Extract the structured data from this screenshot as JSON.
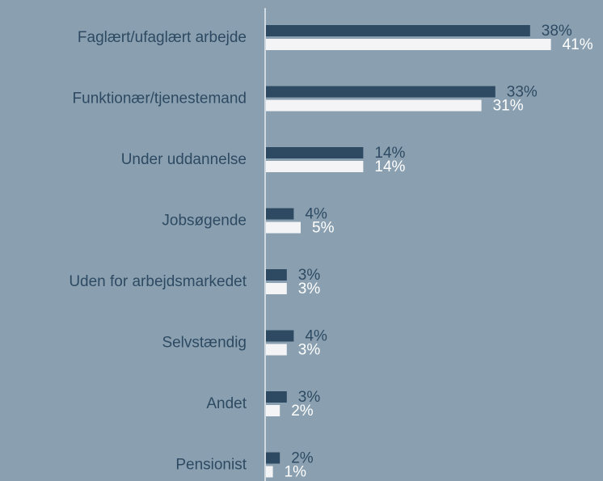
{
  "chart_data": {
    "type": "bar",
    "orientation": "horizontal",
    "categories": [
      "Faglært/ufaglært arbejde",
      "Funktionær/tjenestemand",
      "Under uddannelse",
      "Jobsøgende",
      "Uden for arbejdsmarkedet",
      "Selvstændig",
      "Andet",
      "Pensionist"
    ],
    "series": [
      {
        "color": "#2e4a62",
        "values": [
          38,
          33,
          14,
          4,
          3,
          4,
          3,
          2
        ],
        "value_labels": [
          "38%",
          "33%",
          "14%",
          "4%",
          "3%",
          "4%",
          "3%",
          "2%"
        ]
      },
      {
        "color": "#f4f4f7",
        "values": [
          41,
          31,
          14,
          5,
          3,
          3,
          2,
          1
        ],
        "value_labels": [
          "41%",
          "31%",
          "14%",
          "5%",
          "3%",
          "3%",
          "2%",
          "1%"
        ]
      }
    ]
  }
}
